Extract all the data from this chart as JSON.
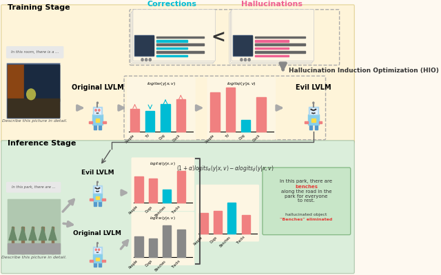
{
  "training_bg": "#fdf6e3",
  "inference_bg": "#e8f5e8",
  "training_label": "Training Stage",
  "inference_label": "Inference Stage",
  "corrections_color": "#00bcd4",
  "hallucinations_color": "#f06292",
  "hio_label": "Hallucination Induction Optimization (HIO)",
  "original_lvlm_label": "Original LVLM",
  "evil_lvlm_label": "Evil LVLM",
  "training_prompt": "In this room, there is a ...",
  "training_desc": "Describe this picture in detail.",
  "inference_prompt": "In this park, there are ...",
  "inference_desc": "Describe this picture in detail.",
  "bar1_categories": [
    "People",
    "TV",
    "Dog",
    "Clock"
  ],
  "bar1_values_red": [
    0.5,
    0.0,
    0.0,
    0.7
  ],
  "bar1_values_cyan": [
    0.0,
    0.45,
    0.6,
    0.0
  ],
  "bar2_categories": [
    "People",
    "TV",
    "Dog",
    "Clock"
  ],
  "bar2_values_red": [
    0.85,
    0.95,
    0.0,
    0.75
  ],
  "bar2_values_cyan": [
    0.0,
    0.0,
    0.25,
    0.0
  ],
  "bar3_categories": [
    "People",
    "Dogs",
    "Benches",
    "Tracks"
  ],
  "bar3_values_red": [
    0.7,
    0.65,
    0.0,
    0.85
  ],
  "bar3_values_cyan": [
    0.0,
    0.0,
    0.35,
    0.0
  ],
  "bar4_categories": [
    "People",
    "Dogs",
    "Benches",
    "Tracks"
  ],
  "bar4_values_gray": [
    0.55,
    0.5,
    0.85,
    0.75
  ],
  "bar5_categories": [
    "People",
    "Dogs",
    "Benches",
    "Tracks"
  ],
  "bar5_values_red": [
    0.5,
    0.55,
    0.0,
    0.45
  ],
  "bar5_values_cyan": [
    0.0,
    0.0,
    0.75,
    0.0
  ],
  "red_color": "#f08080",
  "cyan_color": "#00bcd4",
  "gray_color": "#888888",
  "dark_gray": "#555555",
  "output_text": "In this park, there are benches along the road in the park for everyone to rest.",
  "output_highlight": "benches",
  "eliminated_text": "hallucinated object\n\"Benches\" eliminated"
}
